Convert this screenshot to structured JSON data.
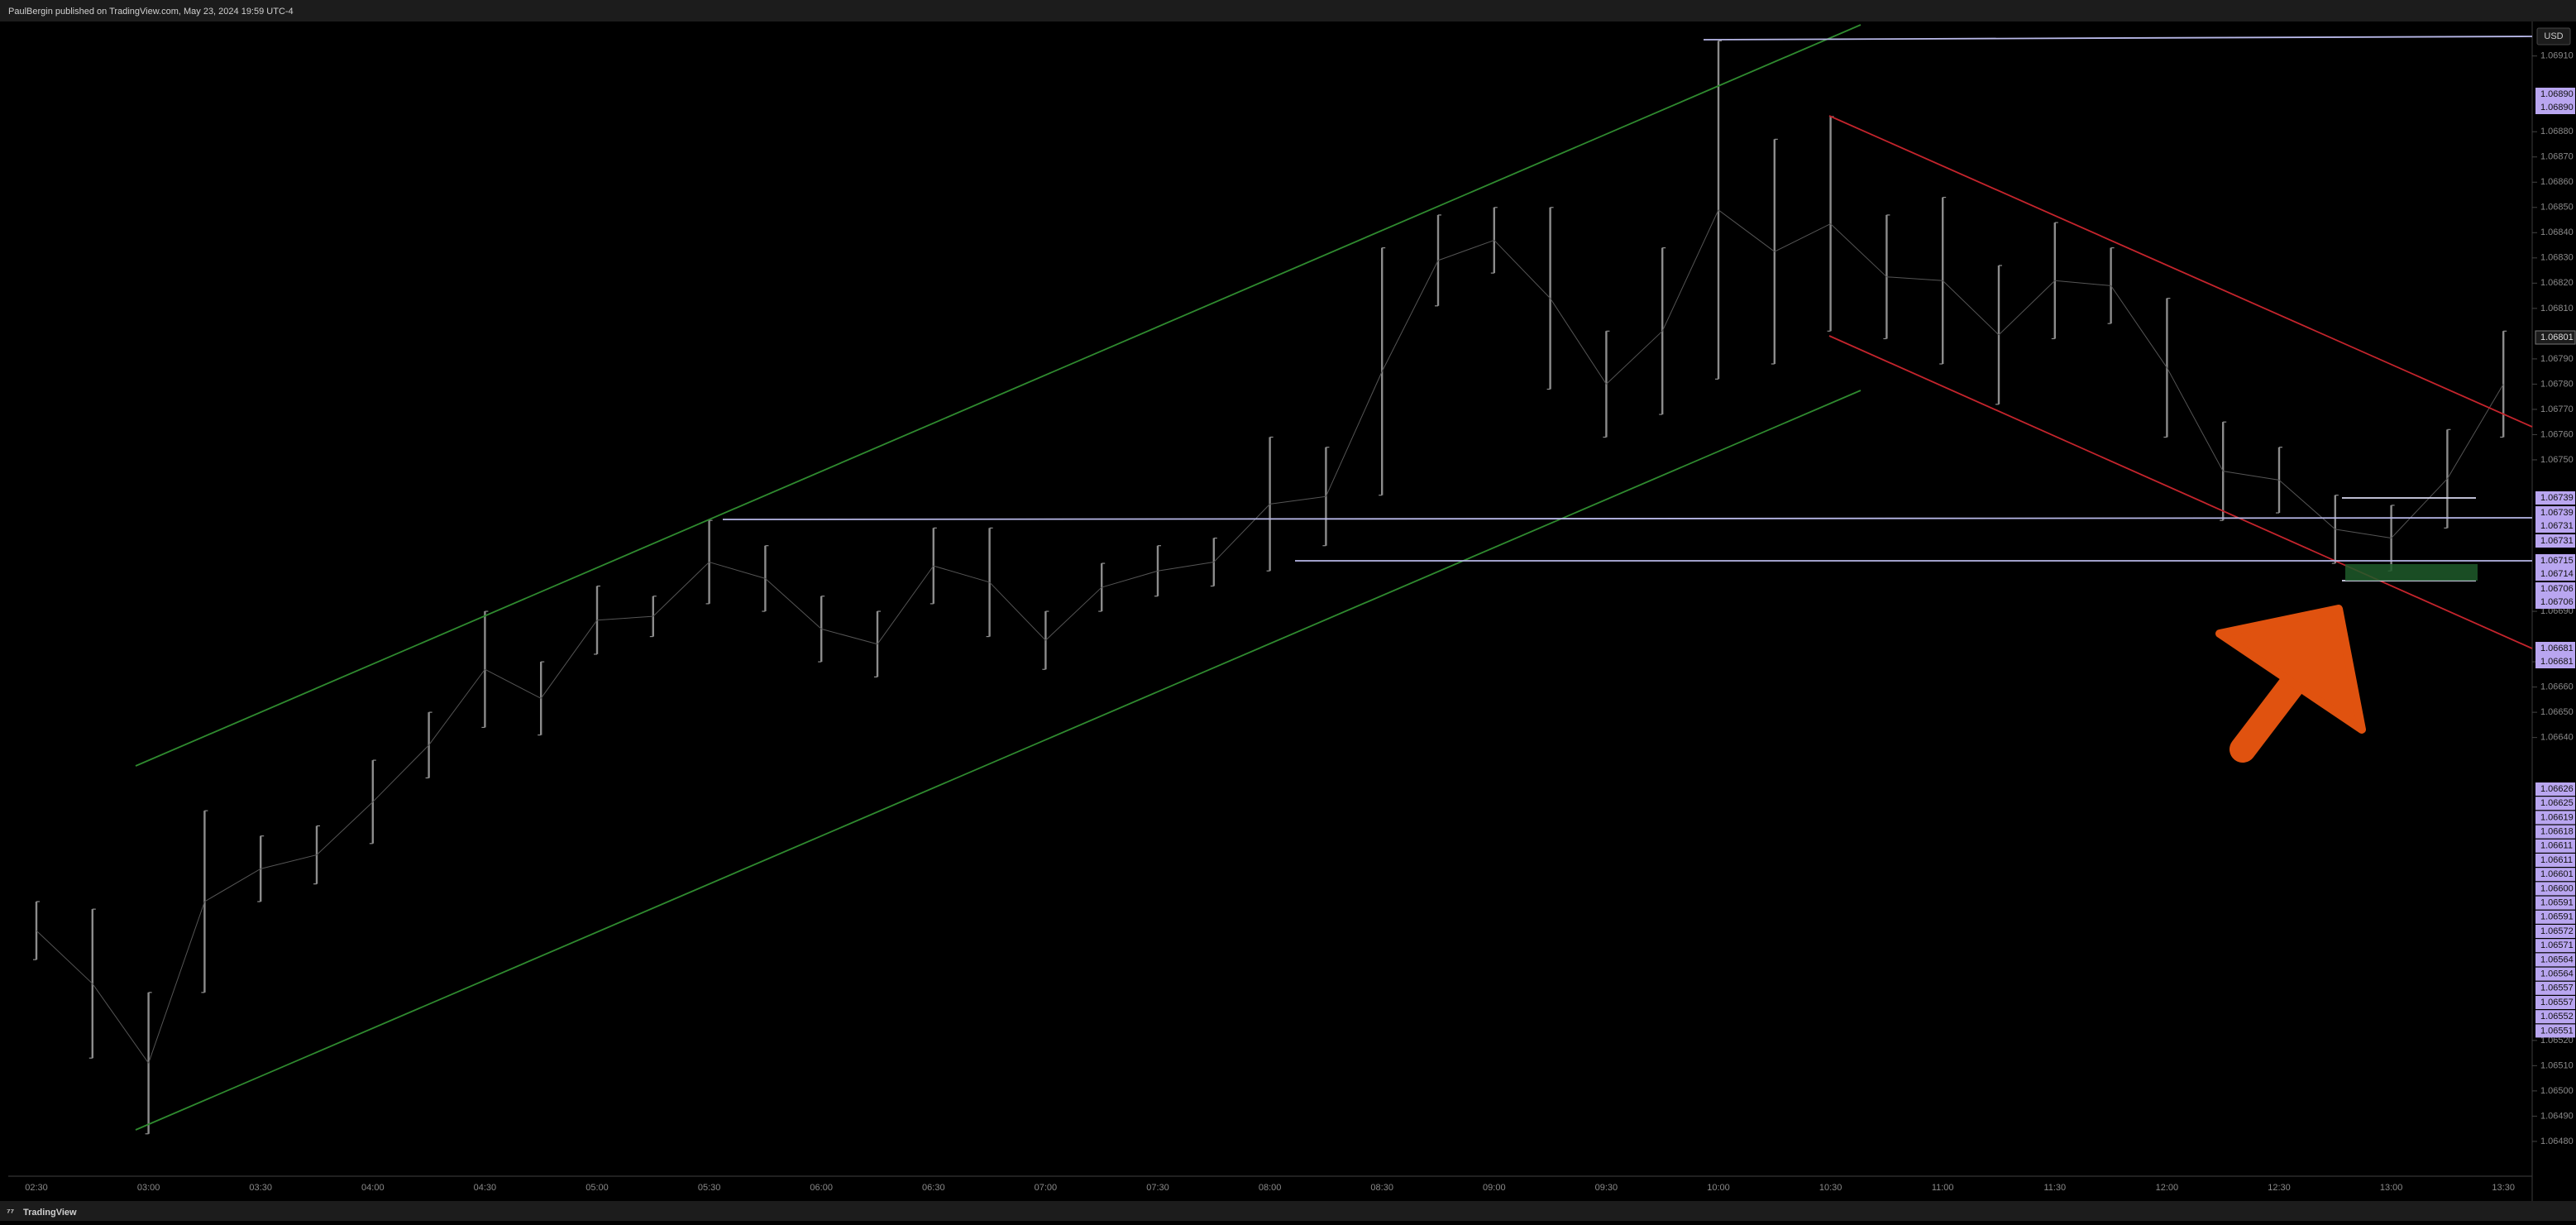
{
  "header": "PaulBergin published on TradingView.com, May 23, 2024 19:59 UTC-4",
  "footer": "TradingView",
  "currency": "USD",
  "last_price": "1.06801",
  "axis_markers": [
    "1.06890",
    "1.06890",
    "1.06739",
    "1.06739",
    "1.06731",
    "1.06731",
    "1.06715",
    "1.06714",
    "1.06706",
    "1.06706",
    "1.06681",
    "1.06681",
    "1.06626",
    "1.06625",
    "1.06619",
    "1.06618",
    "1.06611",
    "1.06611",
    "1.06601",
    "1.06600",
    "1.06591",
    "1.06591",
    "1.06572",
    "1.06571",
    "1.06564",
    "1.06564",
    "1.06557",
    "1.06557",
    "1.06552",
    "1.06551"
  ],
  "chart_data": {
    "type": "range",
    "color": "#8c8c8c",
    "categories": [
      "02:30",
      null,
      "03:00",
      null,
      "03:30",
      null,
      "04:00",
      null,
      "04:30",
      null,
      "05:00",
      null,
      "05:30",
      null,
      "06:00",
      null,
      "06:30",
      null,
      "07:00",
      null,
      "07:30",
      null,
      "08:00",
      null,
      "08:30",
      null,
      "09:00",
      null,
      "09:30",
      null,
      "10:00",
      null,
      "10:30",
      null,
      "11:00",
      null,
      "11:30",
      null,
      "12:00",
      null,
      "12:30",
      null,
      "13:00",
      null,
      "13:30"
    ],
    "high": [
      1.06575,
      1.06572,
      1.06539,
      1.06611,
      1.06601,
      1.06605,
      1.06631,
      1.0665,
      1.0669,
      1.0667,
      1.067,
      1.06696,
      1.06726,
      1.06716,
      1.06696,
      1.0669,
      1.06723,
      1.06723,
      1.0669,
      1.06709,
      1.06716,
      1.06719,
      1.06759,
      1.06755,
      1.06834,
      1.06847,
      1.0685,
      1.0685,
      1.06801,
      1.06834,
      1.06916,
      1.06877,
      1.06886,
      1.06847,
      1.06854,
      1.06827,
      1.06844,
      1.06834,
      1.06814,
      1.06765,
      1.06755,
      1.06736,
      1.06732,
      1.06762,
      1.06801
    ],
    "low": [
      1.06552,
      1.06513,
      1.06483,
      1.06539,
      1.06575,
      1.06582,
      1.06598,
      1.06624,
      1.06644,
      1.06641,
      1.06673,
      1.0668,
      1.06693,
      1.0669,
      1.0667,
      1.06664,
      1.06693,
      1.0668,
      1.06667,
      1.0669,
      1.06696,
      1.067,
      1.06706,
      1.06716,
      1.06736,
      1.06811,
      1.06824,
      1.06778,
      1.06759,
      1.06768,
      1.06782,
      1.06788,
      1.06801,
      1.06798,
      1.06788,
      1.06772,
      1.06798,
      1.06804,
      1.06759,
      1.06726,
      1.06729,
      1.06709,
      1.06706,
      1.06723,
      1.06759
    ],
    "ylim": [
      1.06459,
      1.06923
    ],
    "yticks": [
      {
        "value": 1.0648,
        "label": "1.06480"
      },
      {
        "value": 1.0649,
        "label": "1.06490"
      },
      {
        "value": 1.065,
        "label": "1.06500"
      },
      {
        "value": 1.0651,
        "label": "1.06510"
      },
      {
        "value": 1.0652,
        "label": "1.06520"
      },
      {
        "value": 1.0664,
        "label": "1.06640"
      },
      {
        "value": 1.0665,
        "label": "1.06650"
      },
      {
        "value": 1.0666,
        "label": "1.06660"
      },
      {
        "value": 1.0667,
        "label": "1.06670"
      },
      {
        "value": 1.0669,
        "label": "1.06690"
      },
      {
        "value": 1.0675,
        "label": "1.06750"
      },
      {
        "value": 1.0676,
        "label": "1.06760"
      },
      {
        "value": 1.0677,
        "label": "1.06770"
      },
      {
        "value": 1.0678,
        "label": "1.06780"
      },
      {
        "value": 1.0679,
        "label": "1.06790"
      },
      {
        "value": 1.0681,
        "label": "1.06810"
      },
      {
        "value": 1.0682,
        "label": "1.06820"
      },
      {
        "value": 1.0683,
        "label": "1.06830"
      },
      {
        "value": 1.0684,
        "label": "1.06840"
      },
      {
        "value": 1.0685,
        "label": "1.06850"
      },
      {
        "value": 1.0686,
        "label": "1.06860"
      },
      {
        "value": 1.0687,
        "label": "1.06870"
      },
      {
        "value": 1.0688,
        "label": "1.06880"
      },
      {
        "value": 1.0691,
        "label": "1.06910"
      }
    ]
  }
}
